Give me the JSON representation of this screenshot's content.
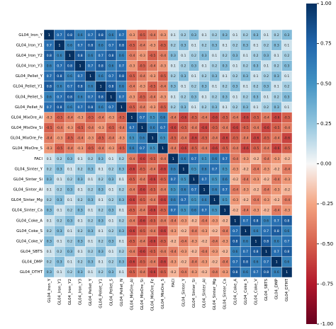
{
  "chart_data": {
    "type": "heatmap",
    "labels": [
      "GL04_Iron_Y",
      "GL04_Iron_Y1",
      "GL04_Iron_Y2",
      "GL04_Iron_Y3",
      "GL04_Pellet_Y",
      "GL04_Pellet_Y1",
      "GL04_Pellet_S",
      "GL04_Pellet_N",
      "GL04_MixOre_Al",
      "GL04_MixOre_Si",
      "GL04_MixOre_Fe",
      "GL04_MixOre_S",
      "FACI",
      "GL04_Sinter_Y",
      "GL04_Sinter_Si",
      "GL04_Sinter_Al",
      "GL04_Sinter_Mg",
      "GL04_Sinter_Ca",
      "GL04_Coke_A",
      "GL04_Coke_S",
      "GL04_Coke_V",
      "GL04_SBTS",
      "GL04_DMP",
      "GL04_DTHT"
    ],
    "values": [
      [
        1,
        0.7,
        0.8,
        0.6,
        0.7,
        0.8,
        0.6,
        0.7,
        -0.3,
        -0.5,
        -0.4,
        -0.3,
        0.1,
        0.2,
        0.3,
        0.1,
        0.2,
        0.3,
        0.1,
        0.2,
        0.3,
        0.1,
        0.2,
        0.3
      ],
      [
        0.7,
        1,
        0.6,
        0.7,
        0.8,
        0.6,
        0.7,
        0.8,
        -0.5,
        -0.4,
        -0.3,
        -0.5,
        0.2,
        0.3,
        0.1,
        0.2,
        0.3,
        0.1,
        0.2,
        0.3,
        0.1,
        0.2,
        0.3,
        0.1
      ],
      [
        0.8,
        0.6,
        1,
        0.8,
        0.6,
        0.7,
        0.8,
        0.6,
        -0.4,
        -0.3,
        -0.5,
        -0.4,
        0.3,
        0.1,
        0.2,
        0.3,
        0.1,
        0.2,
        0.3,
        0.1,
        0.2,
        0.3,
        0.1,
        0.2
      ],
      [
        0.6,
        0.7,
        0.8,
        1,
        0.7,
        0.8,
        0.6,
        0.7,
        -0.3,
        -0.5,
        -0.4,
        -0.3,
        0.1,
        0.2,
        0.3,
        0.1,
        0.2,
        0.3,
        0.1,
        0.2,
        0.3,
        0.1,
        0.2,
        0.3
      ],
      [
        0.7,
        0.8,
        0.6,
        0.7,
        1,
        0.6,
        0.7,
        0.8,
        -0.5,
        -0.4,
        -0.3,
        -0.5,
        0.2,
        0.3,
        0.1,
        0.2,
        0.3,
        0.1,
        0.2,
        0.3,
        0.1,
        0.2,
        0.3,
        0.1
      ],
      [
        0.8,
        0.6,
        0.7,
        0.8,
        0.6,
        1,
        0.8,
        0.6,
        -0.4,
        -0.3,
        -0.5,
        -0.4,
        0.3,
        0.1,
        0.2,
        0.3,
        0.1,
        0.2,
        0.3,
        0.1,
        0.2,
        0.3,
        0.1,
        0.2
      ],
      [
        0.6,
        0.7,
        0.8,
        0.6,
        0.7,
        0.8,
        1,
        0.7,
        -0.3,
        -0.5,
        -0.4,
        -0.3,
        0.1,
        0.2,
        0.3,
        0.1,
        0.2,
        0.3,
        0.1,
        0.2,
        0.3,
        0.1,
        0.2,
        0.3
      ],
      [
        0.7,
        0.8,
        0.6,
        0.7,
        0.8,
        0.6,
        0.7,
        1,
        -0.5,
        -0.4,
        -0.3,
        -0.5,
        0.2,
        0.3,
        0.1,
        0.2,
        0.3,
        0.1,
        0.2,
        0.3,
        0.1,
        0.2,
        0.3,
        0.1
      ],
      [
        -0.3,
        -0.5,
        -0.4,
        -0.3,
        -0.5,
        -0.4,
        -0.3,
        -0.5,
        1,
        0.7,
        0.5,
        0.6,
        -0.4,
        -0.6,
        -0.5,
        -0.4,
        -0.6,
        -0.5,
        -0.4,
        -0.6,
        -0.5,
        -0.4,
        -0.6,
        -0.5
      ],
      [
        -0.5,
        -0.4,
        -0.3,
        -0.5,
        -0.4,
        -0.3,
        -0.5,
        -0.4,
        0.7,
        1,
        0.6,
        0.7,
        -0.6,
        -0.5,
        -0.4,
        -0.6,
        -0.5,
        -0.4,
        -0.6,
        -0.5,
        -0.4,
        -0.6,
        -0.5,
        -0.4
      ],
      [
        -0.4,
        -0.3,
        -0.5,
        -0.4,
        -0.3,
        -0.5,
        -0.4,
        -0.3,
        0.5,
        0.6,
        1,
        0.5,
        -0.5,
        -0.4,
        -0.6,
        -0.5,
        -0.4,
        -0.6,
        -0.5,
        -0.4,
        -0.6,
        -0.5,
        -0.4,
        -0.6
      ],
      [
        -0.3,
        -0.5,
        -0.4,
        -0.3,
        -0.5,
        -0.4,
        -0.3,
        -0.5,
        0.6,
        0.7,
        0.5,
        1,
        -0.4,
        -0.6,
        -0.5,
        -0.4,
        -0.6,
        -0.5,
        -0.4,
        -0.6,
        -0.5,
        -0.4,
        -0.6,
        -0.5
      ],
      [
        0.1,
        0.2,
        0.3,
        0.1,
        0.2,
        0.3,
        0.1,
        0.2,
        -0.4,
        -0.6,
        -0.5,
        -0.4,
        1,
        0.6,
        0.7,
        0.5,
        0.6,
        0.7,
        -0.4,
        -0.3,
        -0.2,
        -0.4,
        -0.3,
        -0.2
      ],
      [
        0.2,
        0.3,
        0.1,
        0.2,
        0.3,
        0.1,
        0.2,
        0.3,
        -0.6,
        -0.5,
        -0.4,
        -0.6,
        0.6,
        1,
        0.5,
        0.6,
        0.7,
        0.5,
        -0.3,
        -0.2,
        -0.4,
        -0.3,
        -0.2,
        -0.4
      ],
      [
        0.3,
        0.1,
        0.2,
        0.3,
        0.1,
        0.2,
        0.3,
        0.1,
        -0.5,
        -0.4,
        -0.6,
        -0.5,
        0.7,
        0.5,
        1,
        0.7,
        0.5,
        0.6,
        -0.2,
        -0.4,
        -0.3,
        -0.2,
        -0.4,
        -0.3
      ],
      [
        0.1,
        0.2,
        0.3,
        0.1,
        0.2,
        0.3,
        0.1,
        0.2,
        -0.4,
        -0.6,
        -0.5,
        -0.4,
        0.5,
        0.6,
        0.7,
        1,
        0.6,
        0.7,
        -0.4,
        -0.3,
        -0.2,
        -0.4,
        -0.3,
        -0.2
      ],
      [
        0.2,
        0.3,
        0.1,
        0.2,
        0.3,
        0.1,
        0.2,
        0.3,
        -0.6,
        -0.5,
        -0.4,
        -0.6,
        0.6,
        0.7,
        0.5,
        0.6,
        1,
        0.5,
        -0.3,
        -0.2,
        -0.4,
        -0.3,
        -0.2,
        -0.4
      ],
      [
        0.3,
        0.1,
        0.2,
        0.3,
        0.1,
        0.2,
        0.3,
        0.1,
        -0.5,
        -0.4,
        -0.6,
        -0.5,
        0.7,
        0.5,
        0.6,
        0.7,
        0.5,
        1,
        -0.2,
        -0.4,
        -0.3,
        -0.2,
        -0.4,
        -0.3
      ],
      [
        0.1,
        0.2,
        0.3,
        0.1,
        0.2,
        0.3,
        0.1,
        0.2,
        -0.4,
        -0.6,
        -0.5,
        -0.4,
        -0.4,
        -0.3,
        -0.2,
        -0.4,
        -0.3,
        -0.2,
        1,
        0.7,
        0.8,
        0.6,
        0.7,
        0.8
      ],
      [
        0.2,
        0.3,
        0.1,
        0.2,
        0.3,
        0.1,
        0.2,
        0.3,
        -0.6,
        -0.5,
        -0.4,
        -0.6,
        -0.3,
        -0.2,
        -0.4,
        -0.3,
        -0.2,
        -0.4,
        0.7,
        1,
        0.6,
        0.7,
        0.8,
        0.6
      ],
      [
        0.3,
        0.1,
        0.2,
        0.3,
        0.1,
        0.2,
        0.3,
        0.1,
        -0.5,
        -0.4,
        -0.6,
        -0.5,
        -0.2,
        -0.4,
        -0.3,
        -0.2,
        -0.4,
        -0.3,
        0.8,
        0.6,
        1,
        0.8,
        0.6,
        0.7
      ],
      [
        0.1,
        0.2,
        0.3,
        0.1,
        0.2,
        0.3,
        0.1,
        0.2,
        -0.4,
        -0.6,
        -0.5,
        -0.4,
        -0.4,
        -0.3,
        -0.2,
        -0.4,
        -0.3,
        -0.2,
        0.6,
        0.7,
        0.8,
        1,
        0.7,
        0.8
      ],
      [
        0.2,
        0.3,
        0.1,
        0.2,
        0.3,
        0.1,
        0.2,
        0.3,
        -0.6,
        -0.5,
        -0.4,
        -0.6,
        -0.3,
        -0.2,
        -0.4,
        -0.3,
        -0.2,
        -0.4,
        0.7,
        0.8,
        0.6,
        0.7,
        1,
        0.6
      ],
      [
        0.3,
        0.1,
        0.2,
        0.3,
        0.1,
        0.2,
        0.3,
        0.1,
        -0.5,
        -0.4,
        -0.6,
        -0.5,
        -0.2,
        -0.4,
        -0.3,
        -0.2,
        -0.4,
        -0.3,
        0.8,
        0.6,
        0.7,
        0.8,
        0.6,
        1
      ]
    ],
    "colorbar": {
      "lim": [
        -1,
        1
      ],
      "ticks": [
        {
          "value": 1,
          "label": "1.00"
        },
        {
          "value": 0.75,
          "label": "0.75"
        },
        {
          "value": 0.5,
          "label": "0.50"
        },
        {
          "value": 0.25,
          "label": "0.25"
        },
        {
          "value": 0,
          "label": "0.00"
        },
        {
          "value": -0.25,
          "label": "-0.25"
        },
        {
          "value": -0.5,
          "label": "-0.50"
        },
        {
          "value": -0.75,
          "label": "-0.75"
        },
        {
          "value": -1,
          "label": "-1.00"
        }
      ]
    }
  }
}
